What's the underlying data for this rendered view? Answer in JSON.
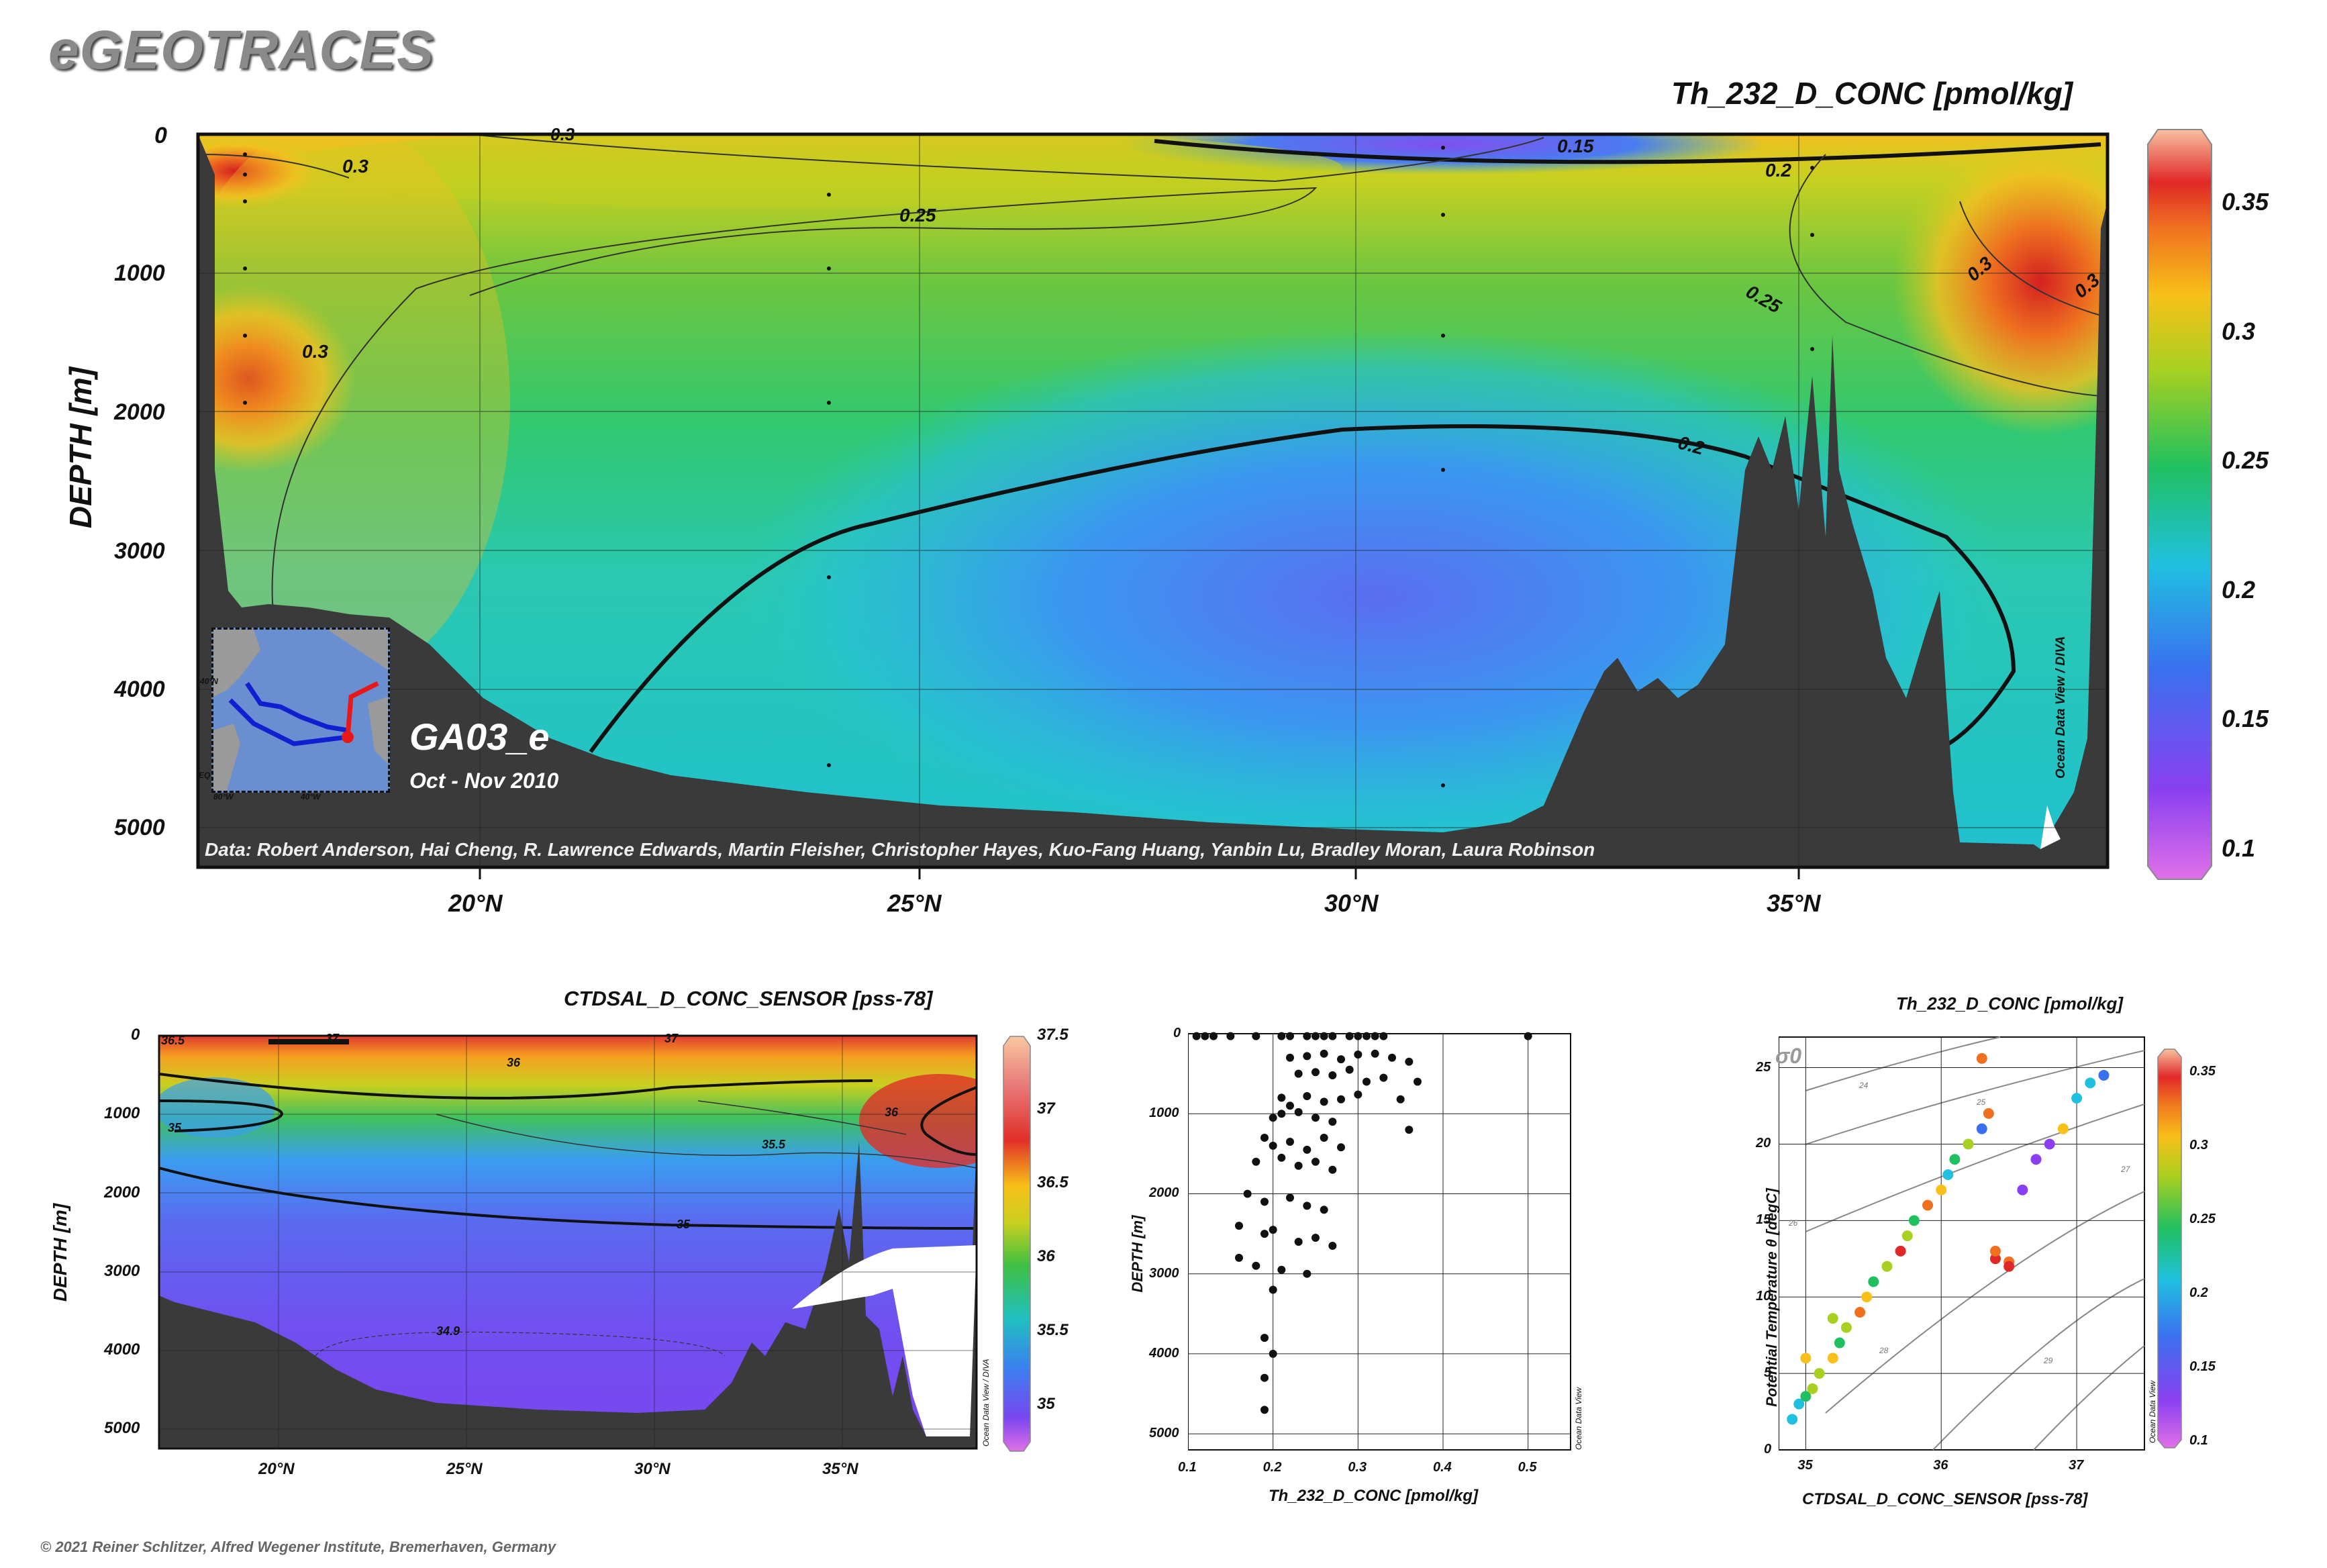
{
  "brand": "eGEOTRACES",
  "credit": "© 2021 Reiner Schlitzer, Alfred Wegener Institute, Bremerhaven, Germany",
  "main_section": {
    "variable_title": "Th_232_D_CONC [pmol/kg]",
    "y_label": "DEPTH [m]",
    "y_ticks": [
      "0",
      "1000",
      "2000",
      "3000",
      "4000",
      "5000"
    ],
    "x_ticks": [
      "20°N",
      "25°N",
      "30°N",
      "35°N"
    ],
    "cruise": "GA03_e",
    "period": "Oct - Nov 2010",
    "data_credit": "Data: Robert Anderson, Hai Cheng, R. Lawrence Edwards, Martin Fleisher, Christopher Hayes, Kuo-Fang Huang, Yanbin Lu, Bradley Moran, Laura Robinson",
    "odv_label": "Ocean Data View / DIVA",
    "colorbar_ticks": [
      "0.35",
      "0.3",
      "0.25",
      "0.2",
      "0.15",
      "0.1"
    ],
    "contour_labels": [
      "0.3",
      "0.3",
      "0.3",
      "0.3",
      "0.3",
      "0.25",
      "0.25",
      "0.2",
      "0.2",
      "0.15"
    ],
    "inset_map_labels": [
      "40°N",
      "80°W",
      "40°W",
      "EQ"
    ]
  },
  "salinity_section": {
    "variable_title": "CTDSAL_D_CONC_SENSOR [pss-78]",
    "y_label": "DEPTH [m]",
    "y_ticks": [
      "0",
      "1000",
      "2000",
      "3000",
      "4000",
      "5000"
    ],
    "x_ticks": [
      "20°N",
      "25°N",
      "30°N",
      "35°N"
    ],
    "odv_label": "Ocean Data View / DIVA",
    "colorbar_ticks": [
      "37.5",
      "37",
      "36.5",
      "36",
      "35.5",
      "35"
    ],
    "contour_labels": [
      "36.5",
      "37",
      "37",
      "36",
      "36",
      "35.5",
      "35",
      "35",
      "34.9"
    ]
  },
  "profile_plot": {
    "y_label": "DEPTH [m]",
    "x_label": "Th_232_D_CONC [pmol/kg]",
    "y_ticks": [
      "0",
      "1000",
      "2000",
      "3000",
      "4000",
      "5000"
    ],
    "x_ticks": [
      "0.1",
      "0.2",
      "0.3",
      "0.4",
      "0.5"
    ],
    "odv_label": "Ocean Data View"
  },
  "ts_plot": {
    "variable_title": "Th_232_D_CONC [pmol/kg]",
    "y_label": "Potential Temperature θ [degC]",
    "x_label": "CTDSAL_D_CONC_SENSOR [pss-78]",
    "y_ticks": [
      "0",
      "5",
      "10",
      "15",
      "20",
      "25"
    ],
    "x_ticks": [
      "35",
      "36",
      "37"
    ],
    "sigma_label": "σ0",
    "isopycnal_labels": [
      "24",
      "25",
      "26",
      "27",
      "28",
      "29"
    ],
    "odv_label": "Ocean Data View",
    "colorbar_ticks": [
      "0.35",
      "0.3",
      "0.25",
      "0.2",
      "0.15",
      "0.1"
    ]
  },
  "chart_data": [
    {
      "type": "scatter",
      "panel": "concentration-depth profile",
      "x": [
        0.11,
        0.12,
        0.13,
        0.15,
        0.18,
        0.21,
        0.22,
        0.24,
        0.25,
        0.26,
        0.27,
        0.29,
        0.3,
        0.31,
        0.32,
        0.33,
        0.5,
        0.22,
        0.24,
        0.26,
        0.28,
        0.3,
        0.32,
        0.34,
        0.36,
        0.23,
        0.25,
        0.27,
        0.29,
        0.31,
        0.33,
        0.37,
        0.21,
        0.22,
        0.24,
        0.26,
        0.28,
        0.3,
        0.35,
        0.2,
        0.21,
        0.23,
        0.25,
        0.27,
        0.36,
        0.19,
        0.2,
        0.22,
        0.24,
        0.26,
        0.28,
        0.18,
        0.21,
        0.23,
        0.25,
        0.27,
        0.17,
        0.19,
        0.22,
        0.24,
        0.26,
        0.16,
        0.19,
        0.2,
        0.23,
        0.25,
        0.27,
        0.16,
        0.18,
        0.21,
        0.24,
        0.2,
        0.19,
        0.2,
        0.19,
        0.19
      ],
      "y": [
        30,
        30,
        30,
        30,
        30,
        30,
        30,
        30,
        30,
        30,
        30,
        30,
        30,
        30,
        30,
        30,
        30,
        300,
        280,
        250,
        320,
        260,
        250,
        300,
        350,
        500,
        480,
        520,
        450,
        600,
        550,
        600,
        800,
        900,
        780,
        850,
        820,
        760,
        820,
        1050,
        1000,
        980,
        1050,
        1100,
        1200,
        1300,
        1400,
        1350,
        1450,
        1300,
        1420,
        1600,
        1550,
        1650,
        1600,
        1700,
        2000,
        2100,
        2050,
        2150,
        2200,
        2400,
        2500,
        2450,
        2600,
        2550,
        2650,
        2800,
        2900,
        2950,
        3000,
        3200,
        3800,
        4000,
        4300,
        4700
      ],
      "xlim": [
        0.1,
        0.55
      ],
      "ylim": [
        0,
        5200
      ],
      "xlabel": "Th_232_D_CONC [pmol/kg]",
      "ylabel": "DEPTH [m]"
    },
    {
      "type": "scatter",
      "panel": "theta-salinity diagram colored by Th_232_D_CONC",
      "x": [
        34.9,
        34.95,
        35.0,
        35.05,
        35.1,
        35.2,
        35.25,
        35.3,
        35.4,
        35.45,
        35.5,
        35.6,
        35.7,
        35.75,
        35.8,
        35.9,
        36.0,
        36.05,
        36.1,
        36.2,
        36.3,
        36.35,
        36.4,
        36.5,
        36.6,
        36.7,
        36.8,
        36.9,
        37.0,
        37.1,
        37.2,
        36.3,
        36.4,
        36.5,
        35.0,
        35.2
      ],
      "y": [
        2,
        3,
        3.5,
        4,
        5,
        6,
        7,
        8,
        9,
        10,
        11,
        12,
        13,
        14,
        15,
        16,
        17,
        18,
        19,
        20,
        21,
        22,
        12.5,
        12.3,
        17,
        19,
        20,
        21,
        23,
        24,
        24.5,
        25.6,
        13,
        12,
        6,
        8.6
      ],
      "value": [
        0.18,
        0.2,
        0.22,
        0.25,
        0.24,
        0.27,
        0.23,
        0.26,
        0.3,
        0.28,
        0.22,
        0.24,
        0.33,
        0.25,
        0.21,
        0.3,
        0.27,
        0.19,
        0.23,
        0.26,
        0.15,
        0.32,
        0.33,
        0.32,
        0.14,
        0.13,
        0.12,
        0.27,
        0.2,
        0.18,
        0.17,
        0.3,
        0.31,
        0.33,
        0.28,
        0.26
      ],
      "xlim": [
        34.8,
        37.5
      ],
      "ylim": [
        0,
        27
      ],
      "xlabel": "CTDSAL_D_CONC_SENSOR [pss-78]",
      "ylabel": "Potential Temperature θ [degC]"
    }
  ]
}
